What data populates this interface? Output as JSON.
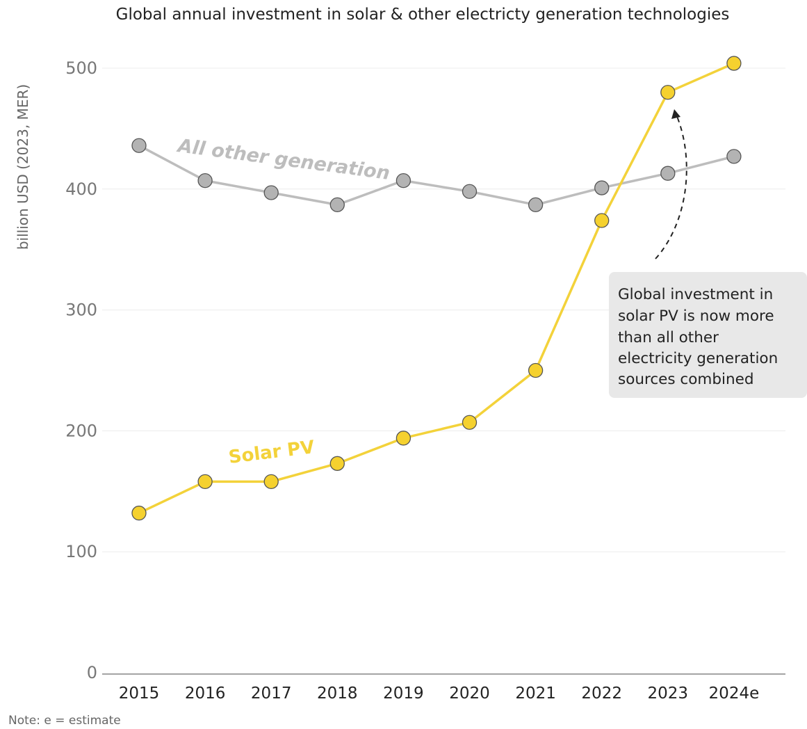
{
  "chart_data": {
    "type": "line",
    "title": "Global annual investment in solar & other electricty generation technologies",
    "ylabel": "billion USD (2023, MER)",
    "xlabel": "",
    "ylim": [
      0,
      500
    ],
    "yticks": [
      "0",
      "100",
      "200",
      "300",
      "400",
      "500"
    ],
    "grid": "horizontal",
    "categories": [
      "2015",
      "2016",
      "2017",
      "2018",
      "2019",
      "2020",
      "2021",
      "2022",
      "2023",
      "2024e"
    ],
    "series": [
      {
        "name": "All other generation",
        "color": "#bdbdbd",
        "marker_color": "#b3b3b3",
        "values": [
          436,
          407,
          397,
          387,
          407,
          398,
          387,
          401,
          413,
          427
        ]
      },
      {
        "name": "Solar PV",
        "color": "#f3d23a",
        "marker_color": "#f5d12f",
        "values": [
          132,
          158,
          158,
          173,
          194,
          207,
          250,
          374,
          480,
          504
        ]
      }
    ],
    "annotation": {
      "lines": [
        "Global investment in",
        "solar PV is now more",
        "than all other",
        "electricity generation",
        "sources combined"
      ],
      "target_category": "2023"
    },
    "note": "Note: e = estimate"
  }
}
